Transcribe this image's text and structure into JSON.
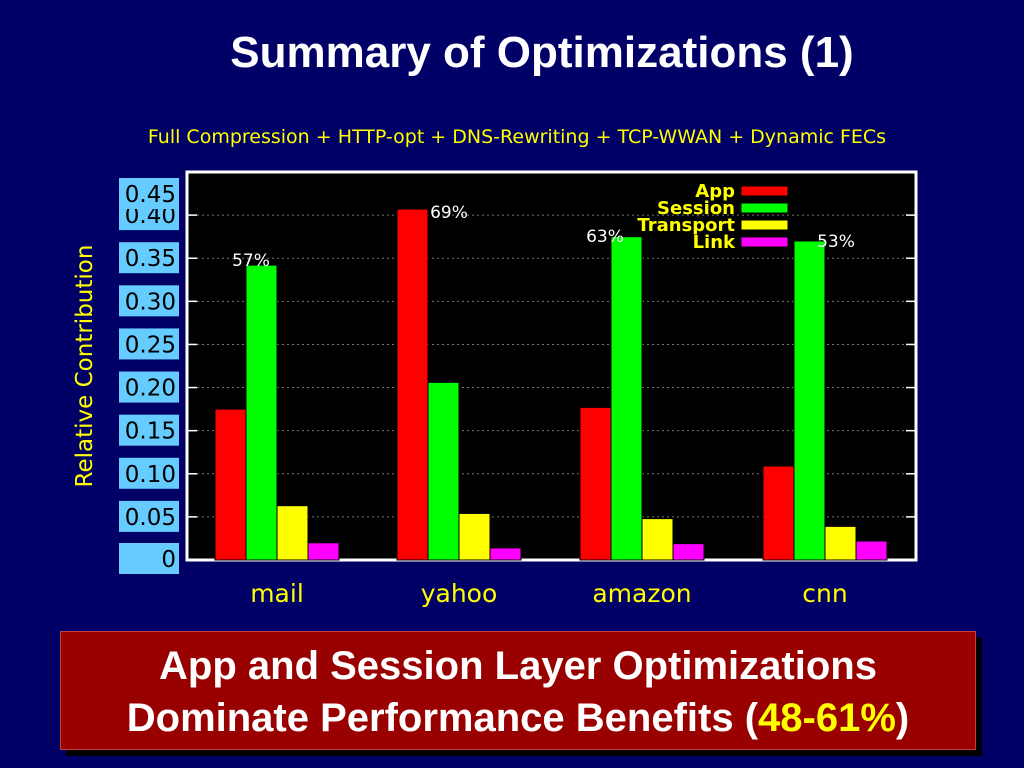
{
  "slide": {
    "title": "Summary of Optimizations (1)",
    "subtitle": "Full Compression + HTTP-opt + DNS-Rewriting + TCP-WWAN + Dynamic FECs"
  },
  "banner": {
    "line1": "App and Session Layer Optimizations",
    "line2_prefix": "Dominate Performance Benefits (",
    "line2_highlight": "48-61%",
    "line2_suffix": ")"
  },
  "colors": {
    "background": "#000066",
    "app": "#ff0000",
    "session": "#00ff00",
    "transport": "#ffff00",
    "link": "#ff00ff",
    "tick_box": "#66ccff",
    "banner": "#990000",
    "highlight": "#ffff00"
  },
  "chart_data": {
    "type": "bar",
    "ylabel": "Relative Contribution",
    "ylim": [
      0,
      0.45
    ],
    "yticks": [
      "0",
      "0.05",
      "0.10",
      "0.15",
      "0.20",
      "0.25",
      "0.30",
      "0.35",
      "0.40",
      "0.45"
    ],
    "categories": [
      "mail",
      "yahoo",
      "amazon",
      "cnn"
    ],
    "series": [
      {
        "name": "App",
        "values": [
          0.175,
          0.407,
          0.177,
          0.109
        ]
      },
      {
        "name": "Session",
        "values": [
          0.342,
          0.206,
          0.375,
          0.37
        ]
      },
      {
        "name": "Transport",
        "values": [
          0.063,
          0.054,
          0.048,
          0.039
        ]
      },
      {
        "name": "Link",
        "values": [
          0.02,
          0.014,
          0.019,
          0.022
        ]
      }
    ],
    "annotations": [
      "57%",
      "69%",
      "63%",
      "53%"
    ],
    "legend_position": "top-right",
    "grid": true
  }
}
